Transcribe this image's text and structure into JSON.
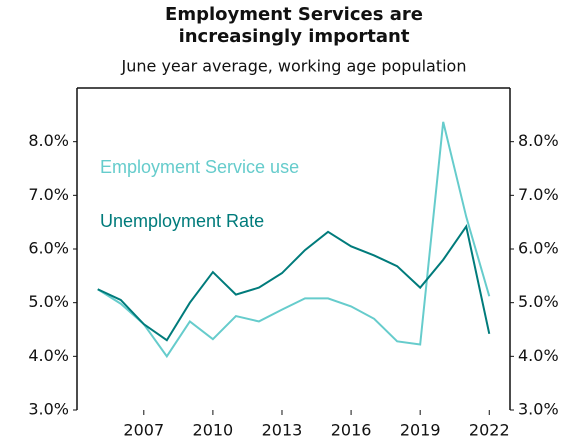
{
  "chart_data": {
    "type": "line",
    "title": [
      "Employment Services are",
      "increasingly important"
    ],
    "subtitle": "June year average, working age population",
    "x": [
      2005,
      2006,
      2007,
      2008,
      2009,
      2010,
      2011,
      2012,
      2013,
      2014,
      2015,
      2016,
      2017,
      2018,
      2019,
      2020,
      2021,
      2022
    ],
    "xlim": [
      2004.1,
      2022.9
    ],
    "xticks": [
      2007,
      2010,
      2013,
      2016,
      2019,
      2022
    ],
    "ylim": [
      3,
      9
    ],
    "yticks": [
      {
        "value": 3,
        "label": "3.0%"
      },
      {
        "value": 4,
        "label": "4.0%"
      },
      {
        "value": 5,
        "label": "5.0%"
      },
      {
        "value": 6,
        "label": "6.0%"
      },
      {
        "value": 7,
        "label": "7.0%"
      },
      {
        "value": 8,
        "label": "8.0%"
      }
    ],
    "y2lim": [
      3,
      9
    ],
    "y2ticks": [
      {
        "value": 3,
        "label": "3.0%"
      },
      {
        "value": 4,
        "label": "4.0%"
      },
      {
        "value": 5,
        "label": "5.0%"
      },
      {
        "value": 6,
        "label": "6.0%"
      },
      {
        "value": 7,
        "label": "7.0%"
      },
      {
        "value": 8,
        "label": "8.0%"
      }
    ],
    "series": [
      {
        "name": "Employment Service use",
        "color": "#66cccc",
        "values": [
          5.25,
          4.98,
          4.6,
          4.0,
          4.65,
          4.32,
          4.75,
          4.65,
          4.87,
          5.08,
          5.08,
          4.93,
          4.7,
          4.28,
          4.22,
          8.37,
          6.6,
          5.12
        ]
      },
      {
        "name": "Unemployment Rate",
        "color": "#007b7b",
        "values": [
          5.25,
          5.05,
          4.6,
          4.3,
          5.0,
          5.57,
          5.15,
          5.28,
          5.55,
          5.98,
          6.32,
          6.05,
          5.88,
          5.68,
          5.28,
          5.8,
          6.42,
          4.42
        ]
      }
    ]
  }
}
